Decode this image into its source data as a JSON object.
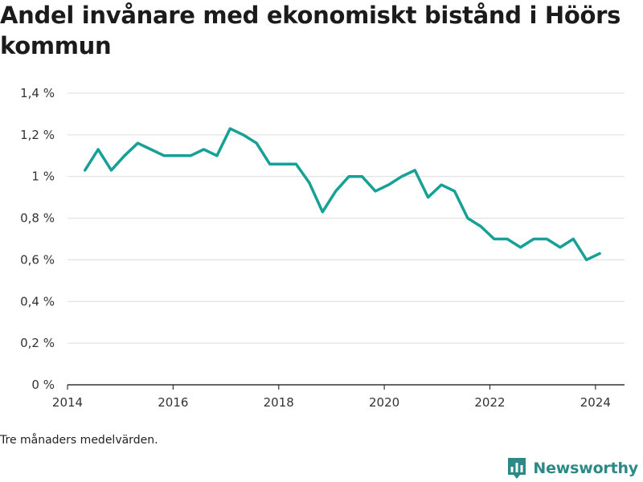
{
  "title": "Andel invånare med ekonomiskt bistånd i Höörs kommun",
  "footnote": "Tre månaders medelvärden.",
  "brand": {
    "name": "Newsworthy",
    "icon": "bar-chart-logo-icon",
    "color": "#2b8a85"
  },
  "colors": {
    "line": "#17a096",
    "grid": "#dcdcdc",
    "axis": "#333333"
  },
  "chart_data": {
    "type": "line",
    "title": "Andel invånare med ekonomiskt bistånd i Höörs kommun",
    "xlabel": "",
    "ylabel": "",
    "ylim": [
      0,
      1.4
    ],
    "xlim": [
      2014.0,
      2024.55
    ],
    "grid": true,
    "y_ticks": [
      {
        "value": 0,
        "label": "0 %"
      },
      {
        "value": 0.2,
        "label": "0,2 %"
      },
      {
        "value": 0.4,
        "label": "0,4 %"
      },
      {
        "value": 0.6,
        "label": "0,6 %"
      },
      {
        "value": 0.8,
        "label": "0,8 %"
      },
      {
        "value": 1.0,
        "label": "1 %"
      },
      {
        "value": 1.2,
        "label": "1,2 %"
      },
      {
        "value": 1.4,
        "label": "1,4 %"
      }
    ],
    "x_ticks": [
      {
        "value": 2014,
        "label": "2014"
      },
      {
        "value": 2016,
        "label": "2016"
      },
      {
        "value": 2018,
        "label": "2018"
      },
      {
        "value": 2020,
        "label": "2020"
      },
      {
        "value": 2022,
        "label": "2022"
      },
      {
        "value": 2024,
        "label": "2024"
      }
    ],
    "series": [
      {
        "x": [
          2014.33,
          2014.58,
          2014.83,
          2015.08,
          2015.33,
          2015.58,
          2015.83,
          2016.08,
          2016.33,
          2016.58,
          2016.83,
          2017.08,
          2017.33,
          2017.58,
          2017.83,
          2018.08,
          2018.33,
          2018.58,
          2018.83,
          2019.08,
          2019.33,
          2019.58,
          2019.83,
          2020.08,
          2020.33,
          2020.58,
          2020.83,
          2021.08,
          2021.33,
          2021.58,
          2021.83,
          2022.08,
          2022.33,
          2022.58,
          2022.83,
          2023.08,
          2023.33,
          2023.58,
          2023.83,
          2024.08
        ],
        "values": [
          1.03,
          1.13,
          1.03,
          1.1,
          1.16,
          1.13,
          1.1,
          1.1,
          1.1,
          1.13,
          1.1,
          1.23,
          1.2,
          1.16,
          1.06,
          1.06,
          1.06,
          0.97,
          0.83,
          0.93,
          1.0,
          1.0,
          0.93,
          0.96,
          1.0,
          1.03,
          0.9,
          0.96,
          0.93,
          0.8,
          0.76,
          0.7,
          0.7,
          0.66,
          0.7,
          0.7,
          0.66,
          0.7,
          0.6,
          0.63
        ]
      }
    ]
  }
}
